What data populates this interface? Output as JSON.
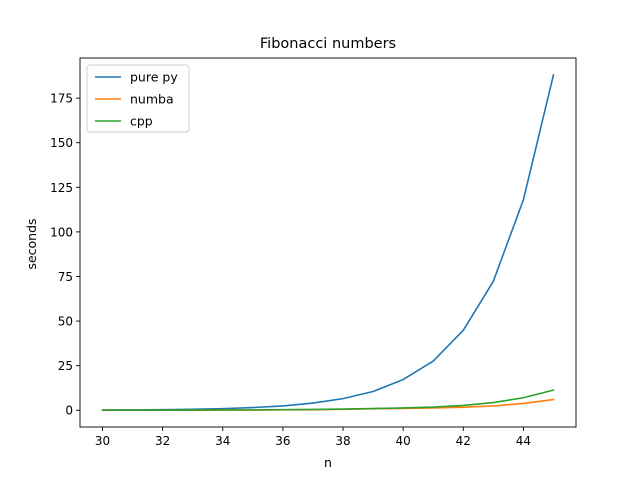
{
  "chart_data": {
    "type": "line",
    "title": "Fibonacci numbers",
    "xlabel": "n",
    "ylabel": "seconds",
    "xlim": [
      29.25,
      45.75
    ],
    "ylim": [
      -9.4,
      197.5
    ],
    "xticks": [
      30,
      32,
      34,
      36,
      38,
      40,
      42,
      44
    ],
    "yticks": [
      0,
      25,
      50,
      75,
      100,
      125,
      150,
      175
    ],
    "grid": false,
    "legend_position": "top-left",
    "x": [
      30,
      31,
      32,
      33,
      34,
      35,
      36,
      37,
      38,
      39,
      40,
      41,
      42,
      43,
      44,
      45
    ],
    "series": [
      {
        "name": "pure py",
        "color": "#1f77b4",
        "values": [
          0.1,
          0.2,
          0.3,
          0.5,
          0.9,
          1.5,
          2.4,
          4.0,
          6.5,
          10.5,
          17.2,
          27.6,
          44.8,
          72.3,
          118.0,
          188.0
        ]
      },
      {
        "name": "numba",
        "color": "#ff7f0e",
        "values": [
          0.01,
          0.02,
          0.03,
          0.05,
          0.08,
          0.12,
          0.2,
          0.33,
          0.5,
          0.8,
          1.0,
          1.3,
          1.7,
          2.4,
          3.8,
          6.0
        ]
      },
      {
        "name": "cpp",
        "color": "#2ca02c",
        "values": [
          0.02,
          0.03,
          0.05,
          0.08,
          0.13,
          0.2,
          0.3,
          0.45,
          0.65,
          0.95,
          1.3,
          1.8,
          2.7,
          4.3,
          7.0,
          11.3
        ]
      }
    ]
  }
}
